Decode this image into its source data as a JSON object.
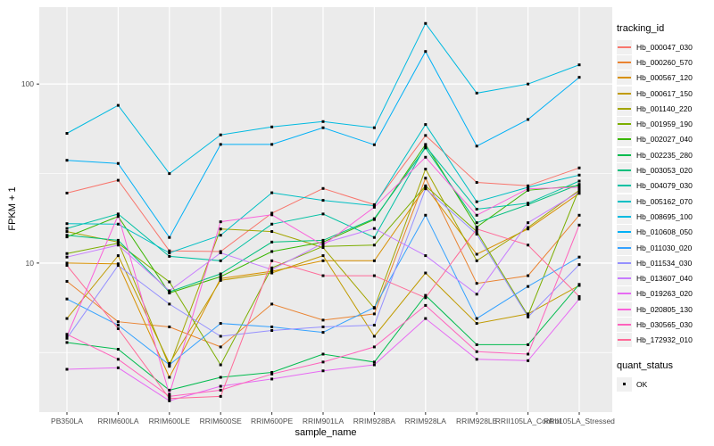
{
  "figure": {
    "y_axis": {
      "title": "FPKM + 1",
      "scale": "log10",
      "tick_labels": [
        "100",
        "10"
      ],
      "tick_values": [
        100,
        10
      ],
      "minor_grid_values": [
        31.62,
        3.162
      ]
    },
    "x_axis": {
      "title": "sample_name"
    },
    "legend": {
      "tracking_title": "tracking_id",
      "quant_title": "quant_status",
      "quant_items": [
        {
          "label": "OK",
          "marker": "black-square"
        }
      ]
    },
    "colors": {
      "panel_background": "#EBEBEB",
      "gridline": "#FFFFFF",
      "tick_text": "#4D4D4D",
      "axis_title_text": "#000000",
      "point": "#000000",
      "legend_key_background": "#F0F0F0"
    }
  },
  "chart_data": {
    "type": "line",
    "title": "",
    "xlabel": "sample_name",
    "ylabel": "FPKM + 1",
    "y_scale": "log10",
    "ylim": [
      1.45,
      270
    ],
    "grid": "on",
    "legend_position": "right",
    "point_marker": "filled-black-square",
    "x_categories": [
      "PB350LA",
      "RRIM600LA",
      "RRIM600LE",
      "RRIM600SE",
      "RRIM600PE",
      "RRIM901LA",
      "RRIM928BA",
      "RRIM928LA",
      "RRIM928LE",
      "RRII105LA_Control",
      "RRII105LA_Stressed"
    ],
    "series": [
      {
        "name": "Hb_000047_030",
        "color": "#F8766D",
        "values": [
          24.6,
          29.0,
          11.7,
          11.6,
          19.0,
          26.1,
          21.2,
          51.6,
          28.2,
          27.0,
          34.0
        ]
      },
      {
        "name": "Hb_000260_570",
        "color": "#EA8331",
        "values": [
          7.9,
          4.7,
          4.4,
          3.4,
          5.9,
          4.8,
          5.2,
          29.8,
          7.7,
          8.5,
          18.5
        ]
      },
      {
        "name": "Hb_000567_120",
        "color": "#D89000",
        "values": [
          10.0,
          9.9,
          2.3,
          8.2,
          9.0,
          10.3,
          10.3,
          26.6,
          11.2,
          15.5,
          24.5
        ]
      },
      {
        "name": "Hb_000617_150",
        "color": "#C09B00",
        "values": [
          4.9,
          11.0,
          2.75,
          8.0,
          8.8,
          11.0,
          3.9,
          8.8,
          4.6,
          5.2,
          7.5
        ]
      },
      {
        "name": "Hb_001140_220",
        "color": "#A3A500",
        "values": [
          15.0,
          13.1,
          2.65,
          15.5,
          15.0,
          12.2,
          5.6,
          33.5,
          10.3,
          15.8,
          25.5
        ]
      },
      {
        "name": "Hb_001959_190",
        "color": "#7CAE00",
        "values": [
          11.3,
          12.9,
          7.85,
          2.7,
          9.4,
          12.4,
          12.6,
          27.0,
          15.0,
          5.1,
          26.0
        ]
      },
      {
        "name": "Hb_002027_040",
        "color": "#39B600",
        "values": [
          14.0,
          18.2,
          6.8,
          8.4,
          11.6,
          13.1,
          17.5,
          46.0,
          15.9,
          25.5,
          27.0
        ]
      },
      {
        "name": "Hb_002235_280",
        "color": "#00BB4E",
        "values": [
          3.6,
          3.3,
          1.95,
          2.3,
          2.45,
          3.1,
          2.8,
          6.6,
          3.5,
          3.5,
          7.6
        ]
      },
      {
        "name": "Hb_003053_020",
        "color": "#00BF7D",
        "values": [
          14.3,
          13.4,
          6.9,
          8.7,
          13.1,
          13.4,
          17.7,
          44.0,
          16.8,
          21.2,
          27.5
        ]
      },
      {
        "name": "Hb_004079_030",
        "color": "#00C1A3",
        "values": [
          15.6,
          18.8,
          10.9,
          10.3,
          16.5,
          18.8,
          13.9,
          45.0,
          20.0,
          21.6,
          28.7
        ]
      },
      {
        "name": "Hb_005162_070",
        "color": "#00BFC4",
        "values": [
          16.6,
          16.5,
          11.4,
          14.3,
          24.7,
          22.4,
          20.9,
          59.4,
          22.0,
          26.5,
          31.0
        ]
      },
      {
        "name": "Hb_008695_100",
        "color": "#00BAE0",
        "values": [
          53.0,
          76.0,
          31.6,
          52.0,
          57.6,
          61.7,
          57.0,
          218.0,
          89.0,
          100.0,
          128.0
        ]
      },
      {
        "name": "Hb_010608_050",
        "color": "#00B0F6",
        "values": [
          37.5,
          36.0,
          13.9,
          46.0,
          46.0,
          57.0,
          45.8,
          152.0,
          45.0,
          63.4,
          109.0
        ]
      },
      {
        "name": "Hb_011030_020",
        "color": "#35A2FF",
        "values": [
          6.3,
          4.5,
          2.7,
          4.6,
          4.4,
          4.1,
          5.65,
          18.5,
          4.9,
          7.4,
          10.8
        ]
      },
      {
        "name": "Hb_011534_030",
        "color": "#9590FF",
        "values": [
          3.8,
          9.7,
          5.9,
          3.9,
          4.2,
          4.4,
          4.5,
          26.0,
          14.5,
          5.0,
          9.8
        ]
      },
      {
        "name": "Hb_013607_040",
        "color": "#C77CFF",
        "values": [
          10.8,
          12.6,
          7.0,
          11.4,
          9.2,
          12.9,
          15.6,
          11.0,
          6.7,
          16.8,
          25.0
        ]
      },
      {
        "name": "Hb_019263_020",
        "color": "#E76BF3",
        "values": [
          2.55,
          2.6,
          1.7,
          2.05,
          2.25,
          2.5,
          2.7,
          4.9,
          2.9,
          2.85,
          6.3
        ]
      },
      {
        "name": "Hb_020805_130",
        "color": "#FA62DB",
        "values": [
          3.9,
          18.5,
          1.85,
          17.0,
          18.6,
          12.6,
          20.5,
          39.0,
          18.5,
          26.0,
          26.5
        ]
      },
      {
        "name": "Hb_030565_030",
        "color": "#FF62BC",
        "values": [
          4.0,
          2.9,
          1.8,
          1.95,
          2.4,
          2.8,
          3.4,
          5.8,
          3.2,
          3.1,
          16.3
        ]
      },
      {
        "name": "Hb_172932_010",
        "color": "#FF6A98",
        "values": [
          9.7,
          4.3,
          1.75,
          1.8,
          10.3,
          8.5,
          8.5,
          6.4,
          15.5,
          12.6,
          6.5
        ]
      }
    ]
  }
}
